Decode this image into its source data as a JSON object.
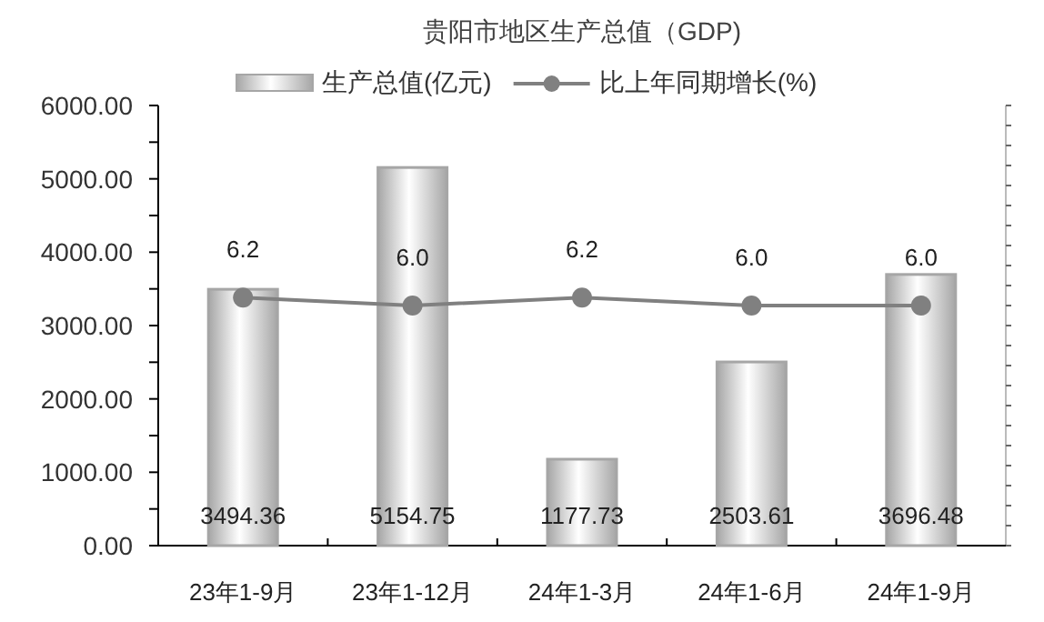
{
  "chart_data": {
    "type": "bar",
    "title": "贵阳市地区生产总值（GDP)",
    "categories": [
      "23年1-9月",
      "23年1-12月",
      "24年1-3月",
      "24年1-6月",
      "24年1-9月"
    ],
    "series": [
      {
        "name": "生产总值(亿元)",
        "color": "#a6a6a6",
        "values": [
          3494.36,
          5154.75,
          1177.73,
          2503.61,
          3696.48
        ],
        "value_labels": [
          "3494.36",
          "5154.75",
          "1177.73",
          "2503.61",
          "3696.48"
        ]
      },
      {
        "name": "比上年同期增长(%)",
        "type": "line",
        "axis": "y2",
        "color": "#808080",
        "values": [
          6.2,
          6.0,
          6.2,
          6.0,
          6.0
        ],
        "value_labels": [
          "6.2",
          "6.0",
          "6.2",
          "6.0",
          "6.0"
        ]
      }
    ],
    "ylim": [
      0,
      6000
    ],
    "yticks": [
      {
        "value": 0,
        "label": "0.00"
      },
      {
        "value": 500,
        "label": null
      },
      {
        "value": 1000,
        "label": "1000.00"
      },
      {
        "value": 1500,
        "label": null
      },
      {
        "value": 2000,
        "label": "2000.00"
      },
      {
        "value": 2500,
        "label": null
      },
      {
        "value": 3000,
        "label": "3000.00"
      },
      {
        "value": 3500,
        "label": null
      },
      {
        "value": 4000,
        "label": "4000.00"
      },
      {
        "value": 4500,
        "label": null
      },
      {
        "value": 5000,
        "label": "5000.00"
      },
      {
        "value": 5500,
        "label": null
      },
      {
        "value": 6000,
        "label": "6000.00"
      }
    ],
    "y2lim": [
      0,
      11
    ],
    "y2ticks": [
      {
        "value": 0,
        "label": null
      },
      {
        "value": 0.5,
        "label": null
      },
      {
        "value": 1,
        "label": null
      },
      {
        "value": 1.5,
        "label": null
      },
      {
        "value": 2,
        "label": null
      },
      {
        "value": 2.5,
        "label": null
      },
      {
        "value": 3,
        "label": null
      },
      {
        "value": 3.5,
        "label": null
      },
      {
        "value": 4,
        "label": null
      },
      {
        "value": 4.5,
        "label": null
      },
      {
        "value": 5,
        "label": null
      },
      {
        "value": 5.5,
        "label": null
      },
      {
        "value": 6,
        "label": null
      },
      {
        "value": 6.5,
        "label": null
      },
      {
        "value": 7,
        "label": null
      },
      {
        "value": 7.5,
        "label": null
      },
      {
        "value": 8,
        "label": null
      },
      {
        "value": 8.5,
        "label": null
      },
      {
        "value": 9,
        "label": null
      },
      {
        "value": 9.5,
        "label": null
      },
      {
        "value": 10,
        "label": null
      },
      {
        "value": 10.5,
        "label": null
      },
      {
        "value": 11,
        "label": null
      }
    ],
    "grid": false,
    "legend": "top",
    "marker": "circle"
  }
}
